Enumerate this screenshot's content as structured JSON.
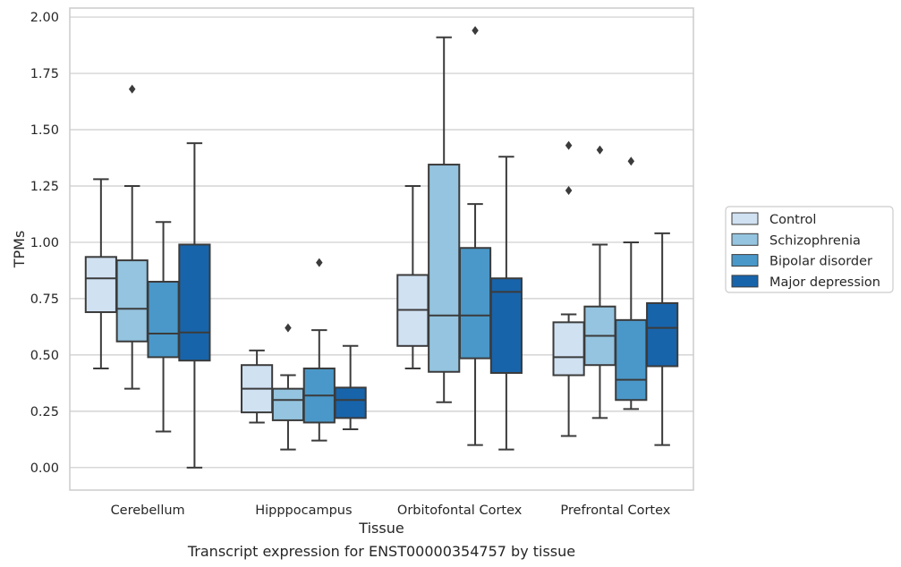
{
  "chart_data": {
    "type": "boxplot",
    "title": "",
    "caption": "Transcript expression for ENST00000354757 by tissue",
    "xlabel": "Tissue",
    "ylabel": "TPMs",
    "ylim": [
      -0.1,
      2.04
    ],
    "yticks": [
      0.0,
      0.25,
      0.5,
      0.75,
      1.0,
      1.25,
      1.5,
      1.75,
      2.0
    ],
    "ytick_labels": [
      "0.00",
      "0.25",
      "0.50",
      "0.75",
      "1.00",
      "1.25",
      "1.50",
      "1.75",
      "2.00"
    ],
    "grid": true,
    "legend_position": "outside-right",
    "categories": [
      "Cerebellum",
      "Hipppocampus",
      "Orbitofontal Cortex",
      "Prefrontal Cortex"
    ],
    "series": [
      {
        "name": "Control",
        "color": "#d0e1f2",
        "boxes": [
          {
            "whisker_low": 0.44,
            "q1": 0.69,
            "median": 0.84,
            "q3": 0.935,
            "whisker_high": 1.28,
            "outliers": []
          },
          {
            "whisker_low": 0.2,
            "q1": 0.245,
            "median": 0.35,
            "q3": 0.455,
            "whisker_high": 0.52,
            "outliers": []
          },
          {
            "whisker_low": 0.44,
            "q1": 0.54,
            "median": 0.7,
            "q3": 0.855,
            "whisker_high": 1.25,
            "outliers": []
          },
          {
            "whisker_low": 0.14,
            "q1": 0.41,
            "median": 0.49,
            "q3": 0.645,
            "whisker_high": 0.68,
            "outliers": [
              1.23,
              1.43
            ]
          }
        ]
      },
      {
        "name": "Schizophrenia",
        "color": "#94c4df",
        "boxes": [
          {
            "whisker_low": 0.35,
            "q1": 0.56,
            "median": 0.705,
            "q3": 0.92,
            "whisker_high": 1.25,
            "outliers": [
              1.68
            ]
          },
          {
            "whisker_low": 0.08,
            "q1": 0.21,
            "median": 0.3,
            "q3": 0.35,
            "whisker_high": 0.41,
            "outliers": [
              0.62
            ]
          },
          {
            "whisker_low": 0.29,
            "q1": 0.425,
            "median": 0.675,
            "q3": 1.345,
            "whisker_high": 1.91,
            "outliers": []
          },
          {
            "whisker_low": 0.22,
            "q1": 0.455,
            "median": 0.585,
            "q3": 0.715,
            "whisker_high": 0.99,
            "outliers": [
              1.41
            ]
          }
        ]
      },
      {
        "name": "Bipolar disorder",
        "color": "#4a98c9",
        "boxes": [
          {
            "whisker_low": 0.16,
            "q1": 0.49,
            "median": 0.595,
            "q3": 0.825,
            "whisker_high": 1.09,
            "outliers": []
          },
          {
            "whisker_low": 0.12,
            "q1": 0.2,
            "median": 0.32,
            "q3": 0.44,
            "whisker_high": 0.61,
            "outliers": [
              0.91
            ]
          },
          {
            "whisker_low": 0.1,
            "q1": 0.485,
            "median": 0.675,
            "q3": 0.975,
            "whisker_high": 1.17,
            "outliers": [
              1.94
            ]
          },
          {
            "whisker_low": 0.26,
            "q1": 0.3,
            "median": 0.39,
            "q3": 0.655,
            "whisker_high": 1.0,
            "outliers": [
              1.36
            ]
          }
        ]
      },
      {
        "name": "Major depression",
        "color": "#1764ab",
        "boxes": [
          {
            "whisker_low": 0.0,
            "q1": 0.475,
            "median": 0.6,
            "q3": 0.99,
            "whisker_high": 1.44,
            "outliers": []
          },
          {
            "whisker_low": 0.17,
            "q1": 0.22,
            "median": 0.3,
            "q3": 0.355,
            "whisker_high": 0.54,
            "outliers": []
          },
          {
            "whisker_low": 0.08,
            "q1": 0.42,
            "median": 0.78,
            "q3": 0.84,
            "whisker_high": 1.38,
            "outliers": []
          },
          {
            "whisker_low": 0.1,
            "q1": 0.45,
            "median": 0.62,
            "q3": 0.73,
            "whisker_high": 1.04,
            "outliers": []
          }
        ]
      }
    ]
  }
}
